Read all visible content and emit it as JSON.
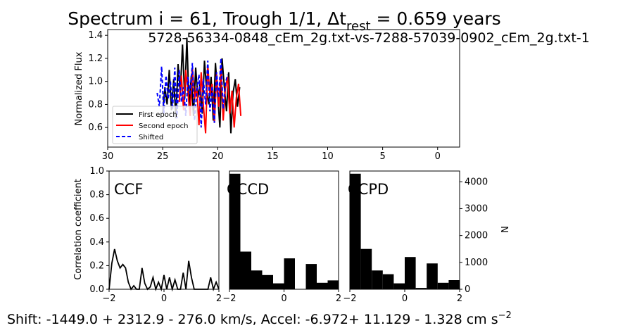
{
  "figure": {
    "title_prefix": "Spectrum i = 61, Trough 1/1, Δt",
    "title_subscript": "rest",
    "title_suffix": " = 0.659 years",
    "footer_main": "Shift: -1449.0 + 2312.9 - 276.0 km/s, Accel: -6.972+ 11.129 - 1.328 cm s",
    "footer_superscript": "−2"
  },
  "colors": {
    "first_epoch": "#000000",
    "second_epoch": "#ff0000",
    "shifted": "#0000ff",
    "histogram": "#000000"
  },
  "chart_data": [
    {
      "id": "spectrum",
      "type": "line",
      "title": "5728-56334-0848_cEm_2g.txt-vs-7288-57039-0902_cEm_2g.txt-1",
      "xlabel": "",
      "ylabel": "Normalized Flux",
      "xlim": [
        30,
        -2
      ],
      "ylim": [
        0.43,
        1.45
      ],
      "xticks": [
        30,
        25,
        20,
        15,
        10,
        5,
        0
      ],
      "yticks": [
        0.6,
        0.8,
        1.0,
        1.2,
        1.4
      ],
      "ytick_labels": [
        "0.6",
        "0.8",
        "1.0",
        "1.2",
        "1.4"
      ],
      "legend_position": "lower-left",
      "series": [
        {
          "name": "First epoch",
          "style": "solid",
          "x": [
            25.0,
            24.8,
            24.6,
            24.4,
            24.2,
            24.0,
            23.8,
            23.6,
            23.4,
            23.2,
            23.0,
            22.8,
            22.6,
            22.4,
            22.2,
            22.0,
            21.8,
            21.6,
            21.4,
            21.2,
            21.0,
            20.8,
            20.6,
            20.4,
            20.2,
            20.0,
            19.8,
            19.6,
            19.4,
            19.2,
            19.0,
            18.8,
            18.6,
            18.4,
            18.2,
            18.0
          ],
          "y": [
            0.72,
            0.95,
            0.8,
            1.1,
            0.75,
            1.02,
            0.68,
            1.15,
            0.9,
            1.32,
            0.85,
            1.38,
            0.78,
            1.05,
            0.7,
            1.12,
            0.86,
            0.98,
            0.72,
            1.18,
            0.92,
            0.8,
            1.04,
            0.66,
            1.16,
            0.88,
            0.6,
            1.2,
            0.96,
            0.74,
            1.08,
            0.55,
            0.9,
            1.02,
            0.78,
            0.95
          ]
        },
        {
          "name": "Second epoch",
          "style": "solid",
          "x": [
            23.5,
            23.3,
            23.1,
            22.9,
            22.7,
            22.5,
            22.3,
            22.1,
            21.9,
            21.7,
            21.5,
            21.3,
            21.1,
            20.9,
            20.7,
            20.5,
            20.3,
            20.1,
            19.9,
            19.7,
            19.5,
            19.3,
            19.1,
            18.9,
            18.7,
            18.5,
            18.3,
            18.1,
            17.9
          ],
          "y": [
            0.82,
            1.05,
            0.75,
            1.1,
            0.9,
            0.7,
            1.12,
            0.85,
            0.95,
            0.62,
            1.08,
            0.8,
            0.55,
            1.14,
            0.88,
            0.98,
            0.64,
            1.06,
            0.78,
            1.12,
            0.66,
            0.94,
            1.04,
            0.72,
            0.92,
            0.6,
            0.86,
            0.98,
            0.7
          ]
        },
        {
          "name": "Shifted",
          "style": "dashed",
          "x": [
            25.5,
            25.3,
            25.1,
            24.9,
            24.7,
            24.5,
            24.3,
            24.1,
            23.9,
            23.7,
            23.5,
            23.3,
            23.1,
            22.9,
            22.7,
            22.5,
            22.3,
            22.1,
            21.9,
            21.7,
            21.5,
            21.3,
            21.1,
            20.9,
            20.7,
            20.5,
            20.3,
            20.1,
            19.9,
            19.7,
            19.5,
            19.3,
            19.1
          ],
          "y": [
            0.9,
            0.78,
            1.13,
            0.72,
            1.05,
            0.85,
            1.0,
            0.76,
            1.12,
            0.68,
            1.1,
            0.82,
            0.95,
            0.7,
            1.04,
            0.88,
            1.16,
            0.66,
            0.92,
            1.06,
            0.6,
            1.02,
            0.8,
            1.18,
            0.74,
            0.96,
            0.64,
            1.08,
            0.86,
            1.2,
            0.76,
            0.98,
            1.06
          ]
        }
      ]
    },
    {
      "id": "ccf",
      "type": "line",
      "label": "CCF",
      "ylabel": "Correlation coefficient",
      "xlim": [
        -2,
        2
      ],
      "ylim": [
        0,
        1.0
      ],
      "xticks": [
        -2,
        0,
        2
      ],
      "yticks": [
        0.0,
        0.2,
        0.4,
        0.6,
        0.8,
        1.0
      ],
      "ytick_labels": [
        "0.0",
        "0.2",
        "0.4",
        "0.6",
        "0.8",
        "1.0"
      ],
      "series": [
        {
          "x": [
            -2.0,
            -1.9,
            -1.8,
            -1.7,
            -1.6,
            -1.5,
            -1.4,
            -1.3,
            -1.2,
            -1.1,
            -1.0,
            -0.9,
            -0.8,
            -0.7,
            -0.6,
            -0.5,
            -0.4,
            -0.3,
            -0.2,
            -0.1,
            0.0,
            0.1,
            0.2,
            0.3,
            0.4,
            0.5,
            0.6,
            0.7,
            0.8,
            0.9,
            1.0,
            1.1,
            1.2,
            1.3,
            1.4,
            1.5,
            1.6,
            1.7,
            1.8,
            1.9,
            2.0
          ],
          "y": [
            0.0,
            0.22,
            0.34,
            0.24,
            0.18,
            0.21,
            0.18,
            0.06,
            0.0,
            0.03,
            0.0,
            0.0,
            0.18,
            0.05,
            0.0,
            0.02,
            0.1,
            0.0,
            0.06,
            0.0,
            0.12,
            0.0,
            0.1,
            0.0,
            0.08,
            0.0,
            0.0,
            0.14,
            0.0,
            0.24,
            0.1,
            0.0,
            0.0,
            0.0,
            0.0,
            0.0,
            0.0,
            0.1,
            0.0,
            0.06,
            0.0
          ]
        }
      ]
    },
    {
      "id": "cccd",
      "type": "bar",
      "label": "CCCD",
      "xlim": [
        -2,
        2
      ],
      "ylim": [
        0,
        4400
      ],
      "xticks": [
        -2,
        0,
        2
      ],
      "bin_edges": [
        -2.0,
        -1.6,
        -1.2,
        -0.8,
        -0.4,
        0.0,
        0.4,
        0.8,
        1.2,
        1.6,
        2.0
      ],
      "values": [
        4300,
        1400,
        700,
        530,
        220,
        1150,
        0,
        940,
        240,
        330
      ]
    },
    {
      "id": "ccpd",
      "type": "bar",
      "label": "CCPD",
      "ylabel": "N",
      "xlim": [
        -2,
        2
      ],
      "ylim": [
        0,
        4400
      ],
      "xticks": [
        -2,
        0,
        2
      ],
      "yticks": [
        0,
        1000,
        2000,
        3000,
        4000
      ],
      "bin_edges": [
        -2.0,
        -1.6,
        -1.2,
        -0.8,
        -0.4,
        0.0,
        0.4,
        0.8,
        1.2,
        1.6,
        2.0
      ],
      "values": [
        4300,
        1500,
        700,
        560,
        220,
        1200,
        50,
        960,
        240,
        340
      ]
    }
  ]
}
